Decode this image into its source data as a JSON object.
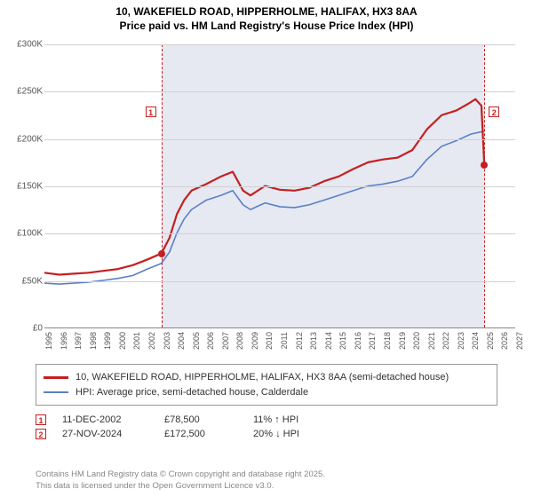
{
  "title": {
    "line1": "10, WAKEFIELD ROAD, HIPPERHOLME, HALIFAX, HX3 8AA",
    "line2": "Price paid vs. HM Land Registry's House Price Index (HPI)"
  },
  "chart": {
    "type": "line",
    "background_color": "#ffffff",
    "shaded_color": "#e6e9f2",
    "grid_color": "#d0d0d0",
    "axis_color": "#888888",
    "tick_color": "#555555",
    "tick_fontsize": 10,
    "xlim": [
      1995,
      2027
    ],
    "ylim": [
      0,
      300000
    ],
    "ytick_step": 50000,
    "ytick_labels": [
      "£0",
      "£50K",
      "£100K",
      "£150K",
      "£200K",
      "£250K",
      "£300K"
    ],
    "xticks": [
      1995,
      1996,
      1997,
      1998,
      1999,
      2000,
      2001,
      2002,
      2003,
      2004,
      2005,
      2006,
      2007,
      2008,
      2009,
      2010,
      2011,
      2012,
      2013,
      2014,
      2015,
      2016,
      2017,
      2018,
      2019,
      2020,
      2021,
      2022,
      2023,
      2024,
      2025,
      2026,
      2027
    ],
    "shaded_from": 2002.95,
    "shaded_to": 2024.9,
    "series": [
      {
        "id": "address",
        "label": "10, WAKEFIELD ROAD, HIPPERHOLME, HALIFAX, HX3 8AA (semi-detached house)",
        "color": "#c42020",
        "line_width": 2.2,
        "data": [
          [
            1995,
            58000
          ],
          [
            1996,
            56000
          ],
          [
            1997,
            57000
          ],
          [
            1998,
            58000
          ],
          [
            1999,
            60000
          ],
          [
            2000,
            62000
          ],
          [
            2001,
            66000
          ],
          [
            2002,
            72000
          ],
          [
            2002.95,
            78500
          ],
          [
            2003.5,
            95000
          ],
          [
            2004,
            120000
          ],
          [
            2004.5,
            135000
          ],
          [
            2005,
            145000
          ],
          [
            2006,
            152000
          ],
          [
            2007,
            160000
          ],
          [
            2007.8,
            165000
          ],
          [
            2008.5,
            145000
          ],
          [
            2009,
            140000
          ],
          [
            2010,
            150000
          ],
          [
            2011,
            146000
          ],
          [
            2012,
            145000
          ],
          [
            2013,
            148000
          ],
          [
            2014,
            155000
          ],
          [
            2015,
            160000
          ],
          [
            2016,
            168000
          ],
          [
            2017,
            175000
          ],
          [
            2018,
            178000
          ],
          [
            2019,
            180000
          ],
          [
            2020,
            188000
          ],
          [
            2021,
            210000
          ],
          [
            2022,
            225000
          ],
          [
            2023,
            230000
          ],
          [
            2023.8,
            237000
          ],
          [
            2024.3,
            242000
          ],
          [
            2024.7,
            235000
          ],
          [
            2024.9,
            172500
          ]
        ]
      },
      {
        "id": "hpi",
        "label": "HPI: Average price, semi-detached house, Calderdale",
        "color": "#5b7fc7",
        "line_width": 1.6,
        "data": [
          [
            1995,
            47000
          ],
          [
            1996,
            46000
          ],
          [
            1997,
            47000
          ],
          [
            1998,
            48000
          ],
          [
            1999,
            50000
          ],
          [
            2000,
            52000
          ],
          [
            2001,
            55000
          ],
          [
            2002,
            62000
          ],
          [
            2002.95,
            68000
          ],
          [
            2003.5,
            80000
          ],
          [
            2004,
            100000
          ],
          [
            2004.5,
            115000
          ],
          [
            2005,
            125000
          ],
          [
            2006,
            135000
          ],
          [
            2007,
            140000
          ],
          [
            2007.8,
            145000
          ],
          [
            2008.5,
            130000
          ],
          [
            2009,
            125000
          ],
          [
            2010,
            132000
          ],
          [
            2011,
            128000
          ],
          [
            2012,
            127000
          ],
          [
            2013,
            130000
          ],
          [
            2014,
            135000
          ],
          [
            2015,
            140000
          ],
          [
            2016,
            145000
          ],
          [
            2017,
            150000
          ],
          [
            2018,
            152000
          ],
          [
            2019,
            155000
          ],
          [
            2020,
            160000
          ],
          [
            2021,
            178000
          ],
          [
            2022,
            192000
          ],
          [
            2023,
            198000
          ],
          [
            2024,
            205000
          ],
          [
            2024.9,
            208000
          ]
        ]
      }
    ],
    "markers": [
      {
        "n": "1",
        "x": 2002.95,
        "y": 78500
      },
      {
        "n": "2",
        "x": 2024.9,
        "y": 172500
      }
    ],
    "marker_box_color": "#c42020",
    "vline_color": "#c42020"
  },
  "legend": {
    "border_color": "#999999",
    "rows": [
      {
        "color": "#c42020",
        "width": 3,
        "label_ref": "chart.series.0.label"
      },
      {
        "color": "#5b7fc7",
        "width": 2,
        "label_ref": "chart.series.1.label"
      }
    ]
  },
  "transactions": [
    {
      "n": "1",
      "date": "11-DEC-2002",
      "price": "£78,500",
      "delta": "11% ↑ HPI"
    },
    {
      "n": "2",
      "date": "27-NOV-2024",
      "price": "£172,500",
      "delta": "20% ↓ HPI"
    }
  ],
  "attribution": {
    "line1": "Contains HM Land Registry data © Crown copyright and database right 2025.",
    "line2": "This data is licensed under the Open Government Licence v3.0."
  }
}
